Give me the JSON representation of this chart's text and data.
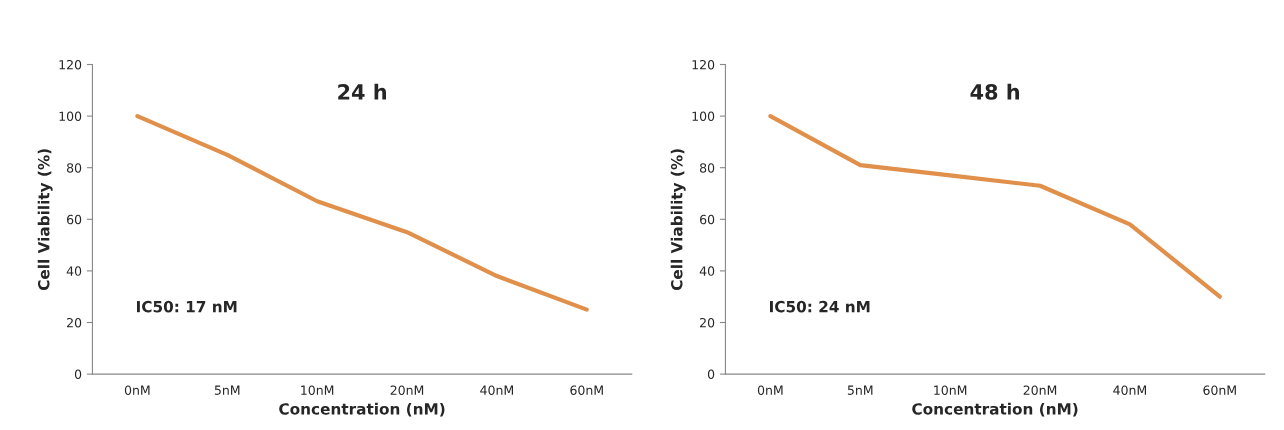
{
  "chart_data": [
    {
      "type": "line",
      "title": "24 h",
      "xlabel": "Concentration (nM)",
      "ylabel": "Cell Viability (%)",
      "categories": [
        "0nM",
        "5nM",
        "10nM",
        "20nM",
        "40nM",
        "60nM"
      ],
      "series": [
        {
          "color": "#e0904a",
          "values": [
            100,
            85,
            67,
            55,
            38,
            25
          ]
        }
      ],
      "ylim": [
        0,
        120
      ],
      "yticks": [
        0,
        20,
        40,
        60,
        80,
        100,
        120
      ],
      "grid": false,
      "legend": false,
      "annotations": [
        "IC50: 17 nM"
      ]
    },
    {
      "type": "line",
      "title": "48 h",
      "xlabel": "Concentration (nM)",
      "ylabel": "Cell Viability (%)",
      "categories": [
        "0nM",
        "5nM",
        "10nM",
        "20nM",
        "40nM",
        "60nM"
      ],
      "series": [
        {
          "color": "#e0904a",
          "values": [
            100,
            81,
            77,
            73,
            58,
            30
          ]
        }
      ],
      "ylim": [
        0,
        120
      ],
      "yticks": [
        0,
        20,
        40,
        60,
        80,
        100,
        120
      ],
      "grid": false,
      "legend": false,
      "annotations": [
        "IC50: 24 nM"
      ]
    }
  ]
}
